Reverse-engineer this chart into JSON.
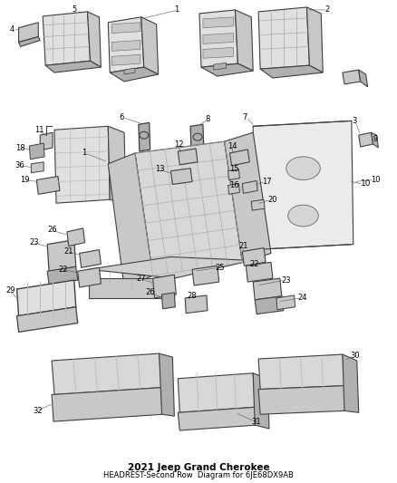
{
  "title": "2021 Jeep Grand Cherokee",
  "subtitle": "HEADREST-Second Row",
  "part_number": "Diagram for 6JE68DX9AB",
  "bg": "#ffffff",
  "lc": "#404040",
  "fc_light": "#e0e0e0",
  "fc_mid": "#c8c8c8",
  "fc_dark": "#b0b0b0",
  "fig_w": 4.38,
  "fig_h": 5.33,
  "dpi": 100,
  "label_fs": 6.0
}
